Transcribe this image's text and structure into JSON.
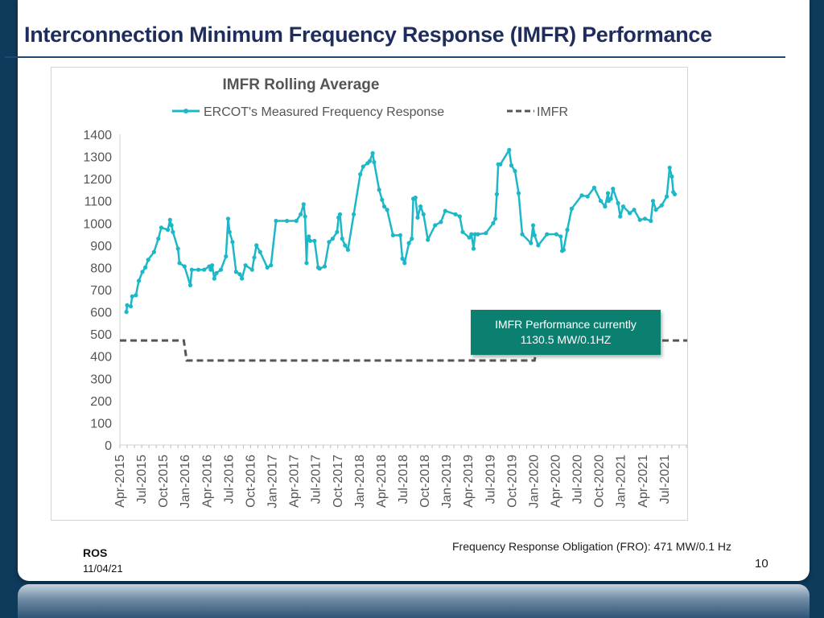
{
  "slide": {
    "title": "Interconnection Minimum Frequency Response (IMFR) Performance",
    "callout_line1": "IMFR Performance currently",
    "callout_line2": "1130.5 MW/0.1HZ",
    "fro_note": "Frequency Response Obligation (FRO): 471 MW/0.1 Hz",
    "page_number": "10",
    "footer_org": "ROS",
    "footer_date": "11/04/21"
  },
  "colors": {
    "measured": "#1cb8c8",
    "imfr": "#555555",
    "callout_bg": "#0b8070",
    "title": "#1f2d5c"
  },
  "chart_data": {
    "type": "line",
    "title": "IMFR Rolling Average",
    "xlabel": "",
    "ylabel": "",
    "ylim": [
      0,
      1400
    ],
    "yticks": [
      0,
      100,
      200,
      300,
      400,
      500,
      600,
      700,
      800,
      900,
      1000,
      1100,
      1200,
      1300,
      1400
    ],
    "xlim": [
      0,
      79
    ],
    "grid": false,
    "legend": "top",
    "x_tick_labels": [
      "Apr-2015",
      "Jul-2015",
      "Oct-2015",
      "Jan-2016",
      "Apr-2016",
      "Jul-2016",
      "Oct-2016",
      "Jan-2017",
      "Apr-2017",
      "Jul-2017",
      "Oct-2017",
      "Jan-2018",
      "Apr-2018",
      "Jul-2018",
      "Oct-2018",
      "Jan-2019",
      "Apr-2019",
      "Jul-2019",
      "Oct-2019",
      "Jan-2020",
      "Apr-2020",
      "Jul-2020",
      "Oct-2020",
      "Jan-2021",
      "Apr-2021",
      "Jul-2021"
    ],
    "x_tick_positions": [
      0,
      3,
      6,
      9,
      12,
      15,
      18,
      21,
      24,
      27,
      30,
      33,
      36,
      39,
      42,
      45,
      48,
      51,
      54,
      57,
      60,
      63,
      66,
      69,
      72,
      75
    ],
    "series": [
      {
        "name": "ERCOT's Measured Frequency Response",
        "style": "solid-markers",
        "x": [
          0.9,
          1.0,
          1.5,
          1.7,
          2.2,
          2.6,
          3.1,
          3.5,
          3.9,
          4.7,
          5.3,
          5.7,
          6.6,
          6.9,
          7.1,
          7.3,
          8.0,
          8.2,
          8.9,
          9.7,
          9.9,
          10.8,
          11.6,
          12.3,
          12.5,
          12.7,
          13.0,
          13.3,
          13.9,
          14.6,
          14.9,
          15.1,
          15.5,
          16.0,
          16.5,
          16.8,
          17.3,
          18.2,
          18.5,
          18.8,
          19.3,
          20.3,
          20.8,
          21.5,
          23.0,
          24.3,
          24.9,
          25.3,
          25.5,
          25.7,
          25.8,
          26.0,
          26.2,
          26.8,
          27.3,
          27.5,
          28.2,
          28.8,
          29.3,
          29.9,
          30.1,
          30.3,
          30.6,
          31.0,
          31.4,
          32.2,
          33.1,
          33.5,
          34.1,
          34.4,
          34.8,
          35.0,
          35.7,
          36.1,
          36.4,
          36.8,
          37.6,
          38.6,
          38.9,
          39.2,
          39.8,
          40.2,
          40.4,
          40.7,
          41.0,
          41.4,
          41.8,
          42.4,
          43.4,
          44.2,
          44.8,
          46.2,
          46.8,
          47.2,
          48.1,
          48.4,
          48.7,
          48.9,
          49.3,
          50.4,
          51.4,
          51.7,
          51.9,
          52.1,
          52.4,
          53.6,
          53.9,
          54.4,
          54.9,
          55.4,
          56.6,
          56.9,
          57.1,
          57.6,
          58.8,
          60.1,
          60.7,
          60.9,
          61.1,
          61.6,
          62.2,
          63.6,
          64.4,
          65.3,
          66.2,
          66.8,
          67.2,
          67.3,
          67.6,
          67.9,
          68.6,
          68.9,
          69.3,
          70.2,
          70.8,
          71.6,
          72.3,
          73.1,
          73.4,
          73.8,
          74.6,
          75.3,
          75.7,
          76.0,
          76.2,
          76.4
        ],
        "y": [
          600,
          630,
          625,
          670,
          675,
          740,
          780,
          800,
          835,
          870,
          930,
          980,
          970,
          1015,
          990,
          960,
          885,
          820,
          805,
          720,
          790,
          790,
          790,
          805,
          790,
          810,
          750,
          775,
          790,
          850,
          1020,
          960,
          915,
          780,
          770,
          750,
          810,
          790,
          845,
          900,
          870,
          800,
          810,
          1010,
          1010,
          1010,
          1040,
          1085,
          1030,
          820,
          925,
          940,
          920,
          920,
          800,
          795,
          805,
          915,
          930,
          960,
          1025,
          1040,
          930,
          900,
          880,
          1040,
          1220,
          1255,
          1270,
          1280,
          1315,
          1275,
          1150,
          1105,
          1075,
          1060,
          945,
          945,
          840,
          820,
          910,
          930,
          1110,
          1115,
          1025,
          1075,
          1040,
          925,
          990,
          1005,
          1055,
          1040,
          1030,
          960,
          935,
          950,
          885,
          950,
          950,
          955,
          1000,
          1020,
          1130,
          1265,
          1265,
          1330,
          1260,
          1235,
          1135,
          950,
          910,
          990,
          945,
          900,
          950,
          950,
          940,
          875,
          880,
          970,
          1065,
          1125,
          1120,
          1160,
          1100,
          1075,
          1135,
          1100,
          1110,
          1155,
          1090,
          1030,
          1075,
          1045,
          1060,
          1015,
          1020,
          1010,
          1100,
          1060,
          1080,
          1120,
          1250,
          1210,
          1140,
          1130
        ]
      },
      {
        "name": "IMFR",
        "style": "dashed",
        "x": [
          0,
          8.8,
          9.2,
          57.1,
          57.3,
          66.8,
          67.3,
          79
        ],
        "y": [
          471,
          471,
          381,
          381,
          423,
          423,
          471,
          471
        ]
      }
    ]
  }
}
